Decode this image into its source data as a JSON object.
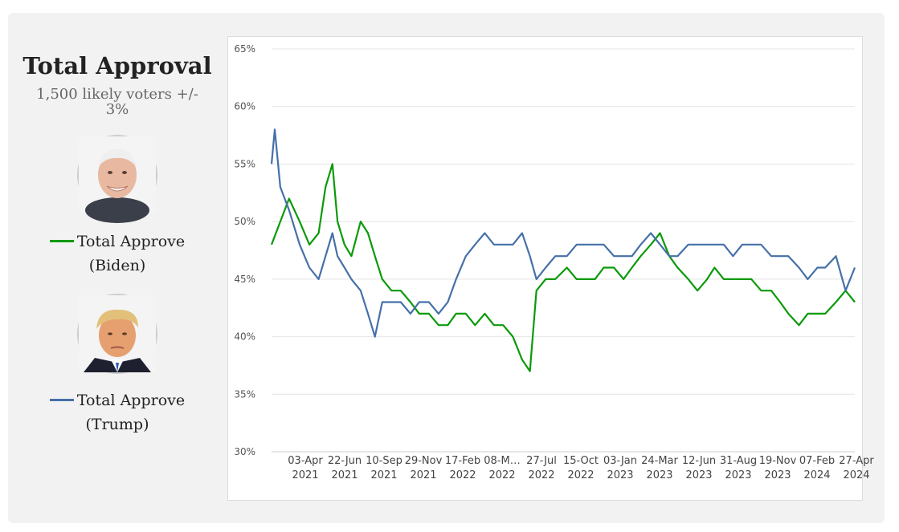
{
  "panel": {
    "title": "Total Approval",
    "subtitle": "1,500 likely voters +/- 3%"
  },
  "legend": [
    {
      "label_line1": "Total Approve",
      "label_line2": "(Biden)",
      "color": "#0a9a0a",
      "avatar_icon": "biden-portrait-icon"
    },
    {
      "label_line1": "Total Approve",
      "label_line2": "(Trump)",
      "color": "#4670a8",
      "avatar_icon": "trump-portrait-icon"
    }
  ],
  "chart_data": {
    "type": "line",
    "title": "",
    "xlabel": "",
    "ylabel": "",
    "ylim": [
      30,
      65
    ],
    "y_ticks": [
      "30%",
      "35%",
      "40%",
      "45%",
      "50%",
      "55%",
      "60%",
      "65%"
    ],
    "grid": true,
    "x_tick_labels": [
      [
        "03-Apr",
        "2021"
      ],
      [
        "22-Jun",
        "2021"
      ],
      [
        "10-Sep",
        "2021"
      ],
      [
        "29-Nov",
        "2021"
      ],
      [
        "17-Feb",
        "2022"
      ],
      [
        "08-M…",
        "2022"
      ],
      [
        "27-Jul",
        "2022"
      ],
      [
        "15-Oct",
        "2022"
      ],
      [
        "03-Jan",
        "2023"
      ],
      [
        "24-Mar",
        "2023"
      ],
      [
        "12-Jun",
        "2023"
      ],
      [
        "31-Aug",
        "2023"
      ],
      [
        "19-Nov",
        "2023"
      ],
      [
        "07-Feb",
        "2024"
      ],
      [
        "27-Apr",
        "2024"
      ]
    ],
    "x_range": [
      "2021-01-13",
      "2024-06-30"
    ],
    "series": [
      {
        "name": "Total Approve (Biden)",
        "color": "#0a9a0a",
        "x": [
          "2021-01-13",
          "2021-02-01",
          "2021-02-20",
          "2021-03-15",
          "2021-04-05",
          "2021-04-25",
          "2021-05-10",
          "2021-05-25",
          "2021-06-05",
          "2021-06-20",
          "2021-07-05",
          "2021-07-25",
          "2021-08-10",
          "2021-08-25",
          "2021-09-10",
          "2021-09-30",
          "2021-10-20",
          "2021-11-10",
          "2021-11-29",
          "2021-12-20",
          "2022-01-10",
          "2022-01-30",
          "2022-02-17",
          "2022-03-10",
          "2022-03-30",
          "2022-04-20",
          "2022-05-10",
          "2022-05-30",
          "2022-06-20",
          "2022-07-10",
          "2022-07-27",
          "2022-08-10",
          "2022-08-30",
          "2022-09-20",
          "2022-10-15",
          "2022-11-05",
          "2022-11-25",
          "2022-12-15",
          "2023-01-03",
          "2023-01-25",
          "2023-02-15",
          "2023-03-05",
          "2023-03-24",
          "2023-04-15",
          "2023-05-05",
          "2023-05-25",
          "2023-06-12",
          "2023-07-05",
          "2023-07-25",
          "2023-08-15",
          "2023-08-31",
          "2023-09-20",
          "2023-10-10",
          "2023-10-30",
          "2023-11-19",
          "2023-12-10",
          "2024-01-01",
          "2024-01-20",
          "2024-02-07",
          "2024-03-01",
          "2024-03-20",
          "2024-04-10",
          "2024-04-27",
          "2024-05-20",
          "2024-06-10",
          "2024-06-30"
        ],
        "y": [
          48,
          50,
          52,
          50,
          48,
          49,
          53,
          55,
          50,
          48,
          47,
          50,
          49,
          47,
          45,
          44,
          44,
          43,
          42,
          42,
          41,
          41,
          42,
          42,
          41,
          42,
          41,
          41,
          40,
          38,
          37,
          44,
          45,
          45,
          46,
          45,
          45,
          45,
          46,
          46,
          45,
          46,
          47,
          48,
          49,
          47,
          46,
          45,
          44,
          45,
          46,
          45,
          45,
          45,
          45,
          44,
          44,
          43,
          42,
          41,
          42,
          42,
          42,
          43,
          44,
          43
        ]
      },
      {
        "name": "Total Approve (Trump)",
        "color": "#4670a8",
        "x": [
          "2021-01-13",
          "2021-01-20",
          "2021-02-01",
          "2021-02-20",
          "2021-03-15",
          "2021-04-05",
          "2021-04-25",
          "2021-05-10",
          "2021-05-25",
          "2021-06-05",
          "2021-06-20",
          "2021-07-05",
          "2021-07-25",
          "2021-08-10",
          "2021-08-25",
          "2021-09-10",
          "2021-09-30",
          "2021-10-20",
          "2021-11-10",
          "2021-11-29",
          "2021-12-20",
          "2022-01-10",
          "2022-01-30",
          "2022-02-17",
          "2022-03-10",
          "2022-03-30",
          "2022-04-20",
          "2022-05-10",
          "2022-05-30",
          "2022-06-20",
          "2022-07-10",
          "2022-07-27",
          "2022-08-10",
          "2022-08-30",
          "2022-09-20",
          "2022-10-15",
          "2022-11-05",
          "2022-11-25",
          "2022-12-15",
          "2023-01-03",
          "2023-01-25",
          "2023-02-15",
          "2023-03-05",
          "2023-03-24",
          "2023-04-15",
          "2023-05-05",
          "2023-05-25",
          "2023-06-12",
          "2023-07-05",
          "2023-07-25",
          "2023-08-15",
          "2023-08-31",
          "2023-09-20",
          "2023-10-10",
          "2023-10-30",
          "2023-11-19",
          "2023-12-10",
          "2024-01-01",
          "2024-01-20",
          "2024-02-07",
          "2024-03-01",
          "2024-03-20",
          "2024-04-10",
          "2024-04-27",
          "2024-05-20",
          "2024-06-10",
          "2024-06-30"
        ],
        "y": [
          55,
          58,
          53,
          51,
          48,
          46,
          45,
          47,
          49,
          47,
          46,
          45,
          44,
          42,
          40,
          43,
          43,
          43,
          42,
          43,
          43,
          42,
          43,
          45,
          47,
          48,
          49,
          48,
          48,
          48,
          49,
          47,
          45,
          46,
          47,
          47,
          48,
          48,
          48,
          48,
          47,
          47,
          47,
          48,
          49,
          48,
          47,
          47,
          48,
          48,
          48,
          48,
          48,
          47,
          48,
          48,
          48,
          47,
          47,
          47,
          46,
          45,
          46,
          46,
          47,
          44,
          46
        ]
      }
    ]
  }
}
